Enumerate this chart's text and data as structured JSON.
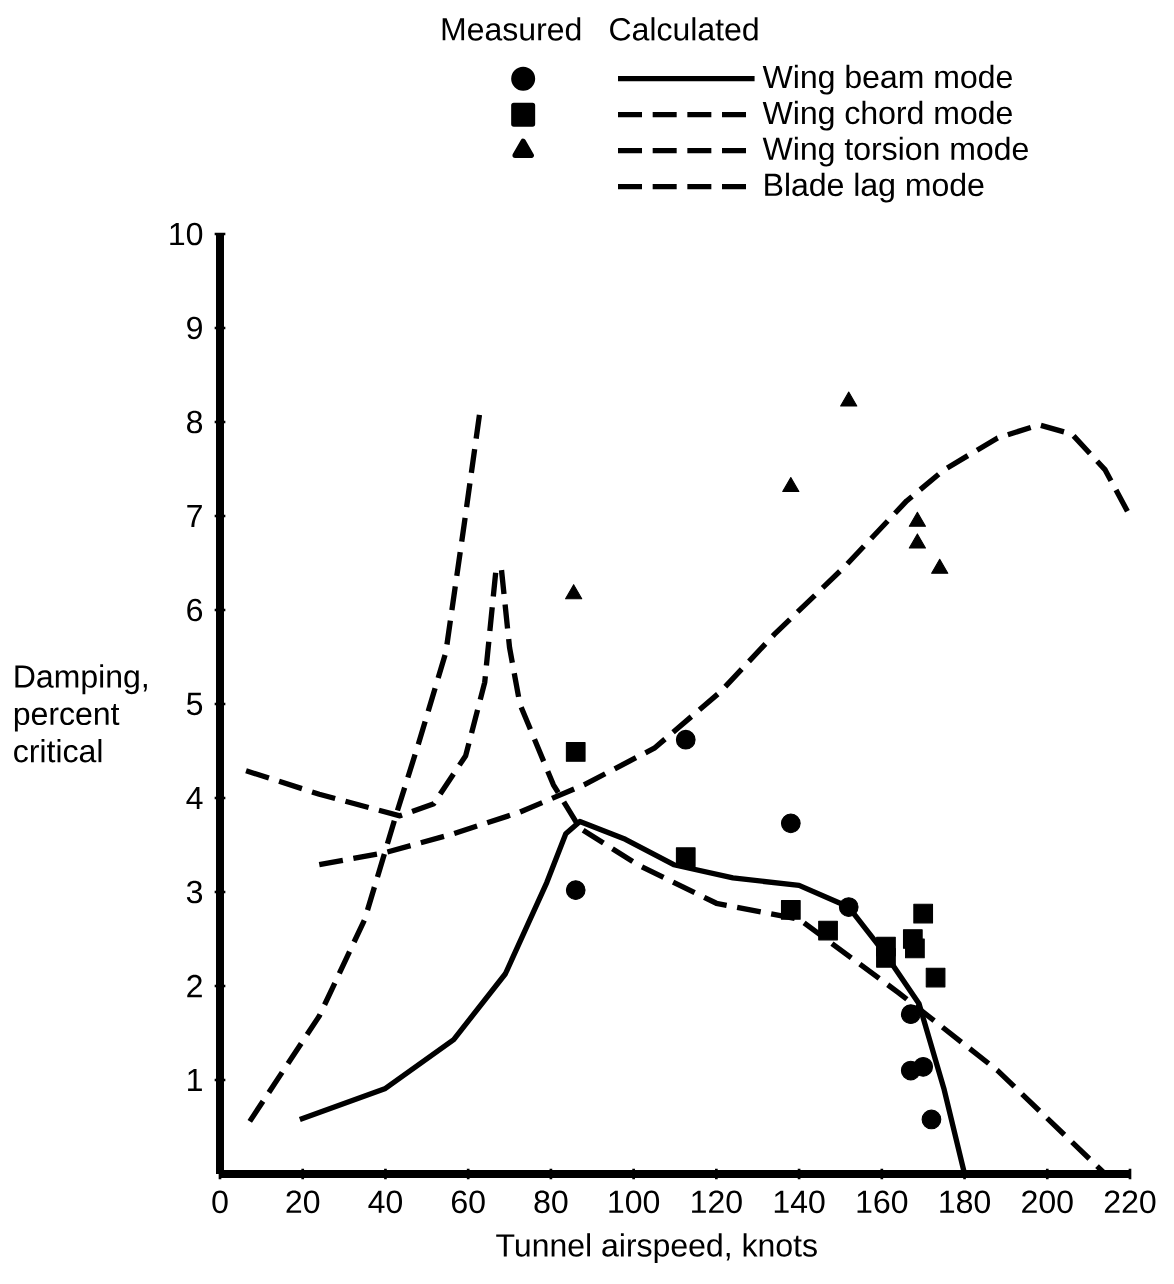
{
  "chart_data": {
    "type": "line",
    "xlabel": "Tunnel airspeed, knots",
    "ylabel": "Damping, percent critical",
    "annotations": [
      "Measured",
      "Calculated"
    ],
    "xlim": [
      0,
      220
    ],
    "ylim": [
      0,
      10
    ],
    "xticks": [
      0,
      20,
      40,
      60,
      80,
      100,
      120,
      140,
      160,
      180,
      200,
      220
    ],
    "yticks": [
      1,
      2,
      3,
      4,
      5,
      6,
      7,
      8,
      9,
      10
    ],
    "legend": "top",
    "series": [
      {
        "name": "Wing beam mode",
        "line_style": "solid",
        "marker": "none",
        "color": "#000000",
        "x": [
          19.3,
          40,
          56.5,
          69,
          79,
          83.6,
          87,
          98,
          109.7,
          124,
          140,
          152,
          161,
          169,
          175,
          180
        ],
        "values": [
          0.58,
          0.91,
          1.43,
          2.13,
          3.1,
          3.62,
          3.75,
          3.56,
          3.29,
          3.15,
          3.07,
          2.84,
          2.33,
          1.81,
          0.91,
          0
        ]
      },
      {
        "name": "Wing chord mode",
        "line_style": "dashed",
        "marker": "none",
        "color": "#000000",
        "x": [
          6.3,
          24,
          43.5,
          51.7,
          59.4,
          64,
          66.7,
          68,
          70,
          72.5,
          80.6,
          87,
          101,
          120,
          140,
          164,
          188,
          214
        ],
        "values": [
          4.29,
          4.04,
          3.81,
          3.94,
          4.45,
          5.23,
          6.42,
          6.45,
          5.6,
          5.0,
          4.14,
          3.68,
          3.29,
          2.88,
          2.71,
          1.93,
          1.1,
          0
        ]
      },
      {
        "name": "Wing torsion mode",
        "line_style": "dashed",
        "marker": "none",
        "color": "#000000",
        "x": [
          24,
          40,
          56.5,
          72.5,
          88,
          105,
          121,
          134,
          151,
          166,
          175,
          188,
          198,
          206,
          214,
          220
        ],
        "values": [
          3.29,
          3.42,
          3.62,
          3.85,
          4.14,
          4.53,
          5.13,
          5.74,
          6.46,
          7.16,
          7.49,
          7.83,
          7.97,
          7.87,
          7.49,
          7.0
        ]
      },
      {
        "name": "Blade lag mode",
        "line_style": "dashed",
        "marker": "none",
        "color": "#000000",
        "x": [
          7.2,
          24,
          35,
          42.5,
          48,
          54.6,
          59,
          62.8
        ],
        "values": [
          0.56,
          1.68,
          2.71,
          3.81,
          4.58,
          5.55,
          6.9,
          8.1
        ]
      },
      {
        "type": "scatter",
        "marker": "circle",
        "color": "#000000",
        "x": [
          86,
          112.6,
          138,
          152,
          160,
          167,
          167,
          170,
          172
        ],
        "values": [
          3.02,
          4.62,
          3.73,
          2.84,
          null,
          1.7,
          1.1,
          1.14,
          0.58
        ]
      },
      {
        "type": "scatter",
        "marker": "square",
        "color": "#000000",
        "x": [
          86,
          112.6,
          138,
          147,
          161,
          161,
          167.5,
          168,
          170,
          173
        ],
        "values": [
          4.49,
          3.37,
          2.81,
          2.59,
          2.42,
          2.3,
          2.5,
          2.4,
          2.77,
          2.09
        ]
      },
      {
        "type": "scatter",
        "marker": "triangle",
        "color": "#000000",
        "x": [
          85.5,
          152,
          138,
          168.6,
          168.6,
          174
        ],
        "values": [
          6.17,
          8.22,
          7.31,
          6.94,
          6.71,
          6.44
        ]
      }
    ]
  }
}
